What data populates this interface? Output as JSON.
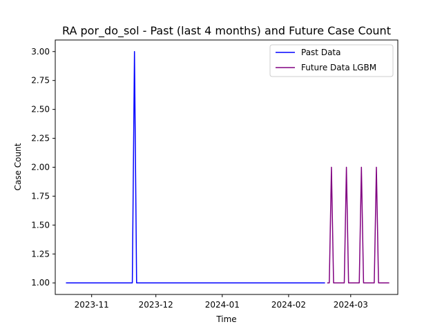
{
  "chart_data": {
    "type": "line",
    "title": "RA por_do_sol - Past (last 4 months) and Future Case Count",
    "xlabel": "Time",
    "ylabel": "Case Count",
    "xlim": [
      "2023-10-15",
      "2024-03-23"
    ],
    "ylim": [
      0.9,
      3.1
    ],
    "x_ticks": [
      {
        "date": "2023-11-01",
        "label": "2023-11"
      },
      {
        "date": "2023-12-01",
        "label": "2023-12"
      },
      {
        "date": "2024-01-01",
        "label": "2024-01"
      },
      {
        "date": "2024-02-01",
        "label": "2024-02"
      },
      {
        "date": "2024-03-01",
        "label": "2024-03"
      }
    ],
    "y_ticks": [
      "1.00",
      "1.25",
      "1.50",
      "1.75",
      "2.00",
      "2.25",
      "2.50",
      "2.75",
      "3.00"
    ],
    "grid": false,
    "legend_position": "top-right",
    "series": [
      {
        "name": "Past Data",
        "color": "#0000ff",
        "points": [
          {
            "x": "2023-10-20",
            "y": 1
          },
          {
            "x": "2023-11-20",
            "y": 1
          },
          {
            "x": "2023-11-21",
            "y": 3
          },
          {
            "x": "2023-11-22",
            "y": 1
          },
          {
            "x": "2024-02-18",
            "y": 1
          }
        ]
      },
      {
        "name": "Future Data LGBM",
        "color": "#800080",
        "points": [
          {
            "x": "2024-02-19",
            "y": 1
          },
          {
            "x": "2024-02-20",
            "y": 1
          },
          {
            "x": "2024-02-21",
            "y": 2
          },
          {
            "x": "2024-02-22",
            "y": 1
          },
          {
            "x": "2024-02-27",
            "y": 1
          },
          {
            "x": "2024-02-28",
            "y": 2
          },
          {
            "x": "2024-02-29",
            "y": 1
          },
          {
            "x": "2024-03-05",
            "y": 1
          },
          {
            "x": "2024-03-06",
            "y": 2
          },
          {
            "x": "2024-03-07",
            "y": 1
          },
          {
            "x": "2024-03-12",
            "y": 1
          },
          {
            "x": "2024-03-13",
            "y": 2
          },
          {
            "x": "2024-03-14",
            "y": 1
          },
          {
            "x": "2024-03-19",
            "y": 1
          }
        ]
      }
    ]
  }
}
